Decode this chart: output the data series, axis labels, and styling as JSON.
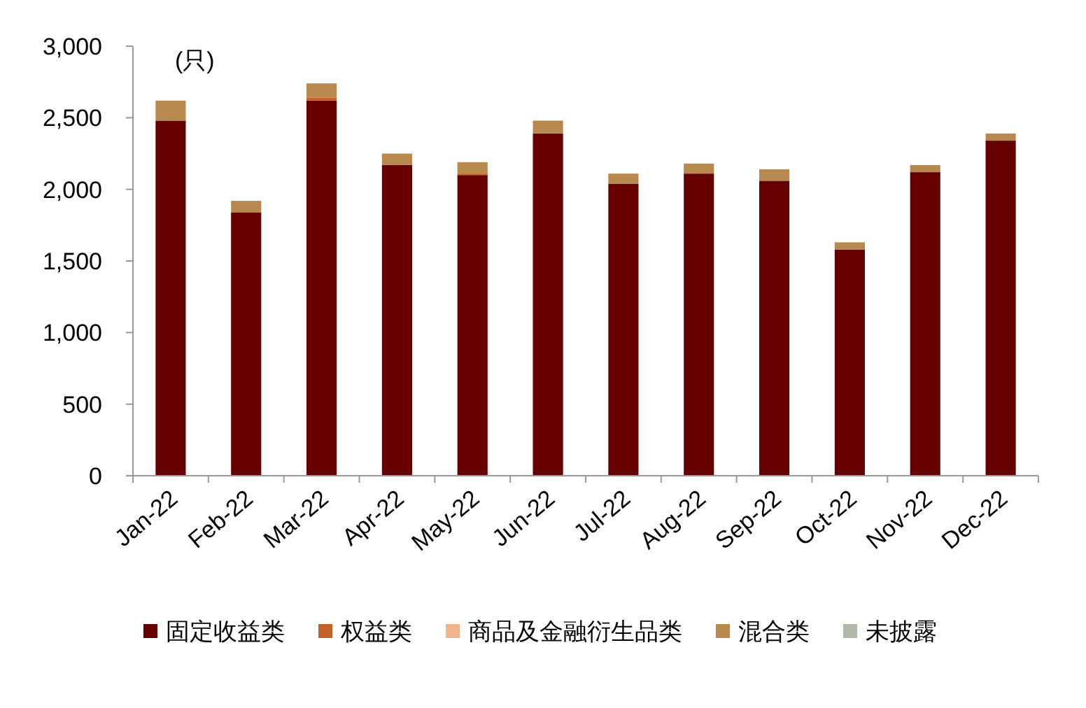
{
  "chart_data": {
    "type": "bar",
    "stacked": true,
    "ylabel": "(只)",
    "categories": [
      "Jan-22",
      "Feb-22",
      "Mar-22",
      "Apr-22",
      "May-22",
      "Jun-22",
      "Jul-22",
      "Aug-22",
      "Sep-22",
      "Oct-22",
      "Nov-22",
      "Dec-22"
    ],
    "series": [
      {
        "name": "固定收益类",
        "color": "#660000",
        "values": [
          2480,
          1840,
          2620,
          2170,
          2100,
          2390,
          2040,
          2110,
          2060,
          1580,
          2120,
          2340
        ]
      },
      {
        "name": "权益类",
        "color": "#c0622a",
        "values": [
          null,
          null,
          20,
          null,
          10,
          null,
          null,
          null,
          null,
          null,
          null,
          null
        ]
      },
      {
        "name": "商品及金融衍生品类",
        "color": "#f0b48c",
        "values": [
          0,
          0,
          0,
          0,
          0,
          0,
          0,
          0,
          0,
          0,
          0,
          0
        ]
      },
      {
        "name": "混合类",
        "color": "#b8894f",
        "values": [
          140,
          80,
          100,
          80,
          80,
          90,
          70,
          70,
          80,
          50,
          50,
          50
        ]
      },
      {
        "name": "未披露",
        "color": "#b4b8a8",
        "values": [
          0,
          0,
          0,
          0,
          0,
          0,
          0,
          0,
          0,
          0,
          0,
          0
        ]
      }
    ],
    "ylim": [
      0,
      3000
    ],
    "yticks": [
      0,
      500,
      {
        "value": 1000,
        "label": "1,000"
      },
      {
        "value": 1500,
        "label": "1,500"
      },
      {
        "value": 2000,
        "label": "2,000"
      },
      {
        "value": 2500,
        "label": "2,500"
      },
      {
        "value": 3000,
        "label": "3,000"
      }
    ],
    "grid": false,
    "legend": "bottom"
  }
}
